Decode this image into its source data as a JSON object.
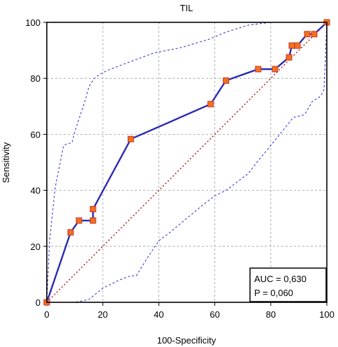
{
  "chart_data": {
    "type": "line",
    "title": "TIL",
    "xlabel": "100-Specificity",
    "ylabel": "Sensitivity",
    "xlim": [
      0,
      100
    ],
    "ylim": [
      0,
      100
    ],
    "xticks": [
      0,
      20,
      40,
      60,
      80,
      100
    ],
    "yticks": [
      0,
      20,
      40,
      60,
      80,
      100
    ],
    "grid": true,
    "colors": {
      "roc": "#2a2ab4",
      "marker_fill": "#f46e1e",
      "marker_edge": "#c0392b",
      "ci": "#3a3ad8",
      "diagonal": "#b01010"
    },
    "series": [
      {
        "values_x": [
          0,
          8.5,
          11.5,
          16.5,
          16.5,
          30,
          58.5,
          64,
          75.5,
          81.5,
          86.5,
          87.5,
          89.5,
          93,
          95.5,
          100
        ],
        "values_y": [
          0,
          25,
          29.2,
          29.2,
          33.3,
          58.3,
          70.8,
          79.2,
          83.3,
          83.3,
          87.5,
          91.7,
          91.7,
          95.8,
          95.8,
          100
        ]
      },
      {
        "values_x": [
          0,
          1,
          3,
          6,
          7,
          9,
          10,
          12,
          14,
          15,
          17,
          19,
          22,
          30,
          38,
          48,
          58,
          64,
          72,
          80,
          86,
          90,
          94,
          97,
          99,
          100
        ],
        "values_y": [
          0,
          22,
          41,
          56,
          56.5,
          57,
          61,
          67,
          73,
          77,
          80,
          81.5,
          83,
          86,
          89,
          91,
          94,
          96.5,
          99,
          100,
          100,
          100,
          100,
          100,
          100,
          100
        ]
      },
      {
        "values_x": [
          0,
          10,
          15,
          20,
          26,
          30,
          32,
          36,
          40,
          44,
          50,
          56,
          60,
          64,
          68,
          72,
          75,
          80,
          84,
          88,
          92,
          95,
          97,
          98,
          99,
          100
        ],
        "values_y": [
          0,
          0,
          1,
          5,
          8,
          9.5,
          9.5,
          16,
          22,
          25,
          30,
          35,
          38,
          40,
          43,
          46,
          50,
          56,
          61,
          66,
          67,
          72,
          73,
          74,
          76,
          100
        ]
      }
    ],
    "diagonal": {
      "x": [
        0,
        100
      ],
      "y": [
        0,
        100
      ]
    },
    "annotation": {
      "line1": "AUC = 0,630",
      "line2": "P = 0,060"
    }
  }
}
